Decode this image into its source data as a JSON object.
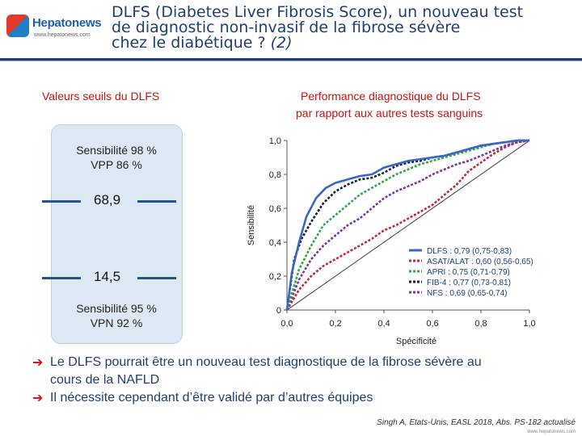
{
  "header": {
    "logo_name": "Hepatonews",
    "logo_url": "www.hepatonews.com",
    "title_line1": "DLFS (Diabetes Liver Fibrosis Score), un nouveau test",
    "title_line2": "de diagnostic non-invasif de la fibrose sévère",
    "title_line3a": "chez le diabétique ? ",
    "title_line3b": "(2)"
  },
  "left_panel": {
    "heading": "Valeurs seuils du DLFS",
    "top_text1": "Sensibilité 98 %",
    "top_text2": "VPP 86 %",
    "threshold_high": "68,9",
    "threshold_low": "14,5",
    "bottom_text1": "Sensibilité 95 %",
    "bottom_text2": "VPN 92 %"
  },
  "right_panel": {
    "heading": "Performance diagnostique du DLFS",
    "subheading": "par rapport aux autres tests sanguins"
  },
  "chart_data": {
    "type": "line",
    "xlabel": "Spécificité",
    "ylabel": "Sensibilité",
    "xlim": [
      0,
      1
    ],
    "ylim": [
      0,
      1
    ],
    "x_ticks": [
      "0,0",
      "0,2",
      "0,4",
      "0,6",
      "0,8",
      "1,0"
    ],
    "y_ticks": [
      "0",
      "0,2",
      "0,4",
      "0,6",
      "0,8",
      "1,0"
    ],
    "legend_position": "bottom-right",
    "series": [
      {
        "name": "DLFS : 0,79 (0,75-0,83)",
        "color": "#3a66c4",
        "dash": "solid",
        "x": [
          0,
          0.02,
          0.05,
          0.08,
          0.12,
          0.16,
          0.2,
          0.25,
          0.3,
          0.35,
          0.4,
          0.45,
          0.5,
          0.55,
          0.6,
          0.65,
          0.7,
          0.75,
          0.8,
          0.85,
          0.9,
          0.95,
          1.0
        ],
        "y": [
          0,
          0.22,
          0.4,
          0.55,
          0.66,
          0.72,
          0.75,
          0.77,
          0.79,
          0.8,
          0.84,
          0.86,
          0.88,
          0.89,
          0.9,
          0.91,
          0.93,
          0.95,
          0.97,
          0.98,
          0.99,
          1.0,
          1.0
        ]
      },
      {
        "name": "ASAT/ALAT : 0,60 (0,56-0,65)",
        "color": "#c4283a",
        "dash": "dot",
        "x": [
          0,
          0.05,
          0.1,
          0.15,
          0.2,
          0.25,
          0.3,
          0.35,
          0.4,
          0.45,
          0.5,
          0.55,
          0.6,
          0.65,
          0.7,
          0.75,
          0.8,
          0.85,
          0.9,
          0.95,
          1.0
        ],
        "y": [
          0,
          0.12,
          0.2,
          0.26,
          0.3,
          0.34,
          0.38,
          0.42,
          0.47,
          0.5,
          0.54,
          0.58,
          0.62,
          0.68,
          0.74,
          0.82,
          0.87,
          0.92,
          0.96,
          0.99,
          1.0
        ]
      },
      {
        "name": "APRI : 0,75 (0,71-0,79)",
        "color": "#2fa846",
        "dash": "dot",
        "x": [
          0,
          0.05,
          0.1,
          0.15,
          0.2,
          0.25,
          0.3,
          0.35,
          0.4,
          0.45,
          0.5,
          0.55,
          0.6,
          0.65,
          0.7,
          0.75,
          0.8,
          0.85,
          0.9,
          0.95,
          1.0
        ],
        "y": [
          0,
          0.24,
          0.38,
          0.5,
          0.56,
          0.62,
          0.68,
          0.72,
          0.76,
          0.8,
          0.83,
          0.86,
          0.88,
          0.9,
          0.92,
          0.94,
          0.96,
          0.98,
          0.99,
          1.0,
          1.0
        ]
      },
      {
        "name": "FIB-4 : 0,77 (0,73-0,81)",
        "color": "#14213d",
        "dash": "dot",
        "x": [
          0,
          0.03,
          0.06,
          0.1,
          0.15,
          0.2,
          0.25,
          0.3,
          0.35,
          0.4,
          0.45,
          0.5,
          0.55,
          0.6,
          0.65,
          0.7,
          0.75,
          0.8,
          0.85,
          0.9,
          0.95,
          1.0
        ],
        "y": [
          0,
          0.3,
          0.42,
          0.52,
          0.63,
          0.7,
          0.74,
          0.77,
          0.78,
          0.81,
          0.85,
          0.87,
          0.88,
          0.9,
          0.91,
          0.93,
          0.95,
          0.97,
          0.98,
          0.99,
          1.0,
          1.0
        ]
      },
      {
        "name": "NFS : 0,69 (0,65-0,74)",
        "color": "#7a35a6",
        "dash": "dot",
        "x": [
          0,
          0.05,
          0.1,
          0.15,
          0.2,
          0.25,
          0.3,
          0.35,
          0.4,
          0.45,
          0.5,
          0.55,
          0.6,
          0.65,
          0.7,
          0.75,
          0.8,
          0.85,
          0.9,
          0.95,
          1.0
        ],
        "y": [
          0,
          0.18,
          0.3,
          0.38,
          0.44,
          0.5,
          0.54,
          0.6,
          0.66,
          0.7,
          0.73,
          0.76,
          0.8,
          0.83,
          0.86,
          0.88,
          0.91,
          0.94,
          0.97,
          0.99,
          1.0
        ]
      },
      {
        "name": "",
        "color": "#555555",
        "dash": "solid",
        "x": [
          0,
          1
        ],
        "y": [
          0,
          1
        ]
      }
    ]
  },
  "bullets": [
    {
      "line1": "Le DLFS pourrait être un nouveau test diagnostique de la fibrose sévère au",
      "line2": "cours de la NAFLD"
    },
    {
      "line1": "Il nécessite cependant d’être validé par d’autres équipes",
      "line2": ""
    }
  ],
  "citation": "Singh A, Etats-Unis, EASL 2018, Abs. PS-182 actualisé",
  "footer_url": "www.hepatonews.com"
}
